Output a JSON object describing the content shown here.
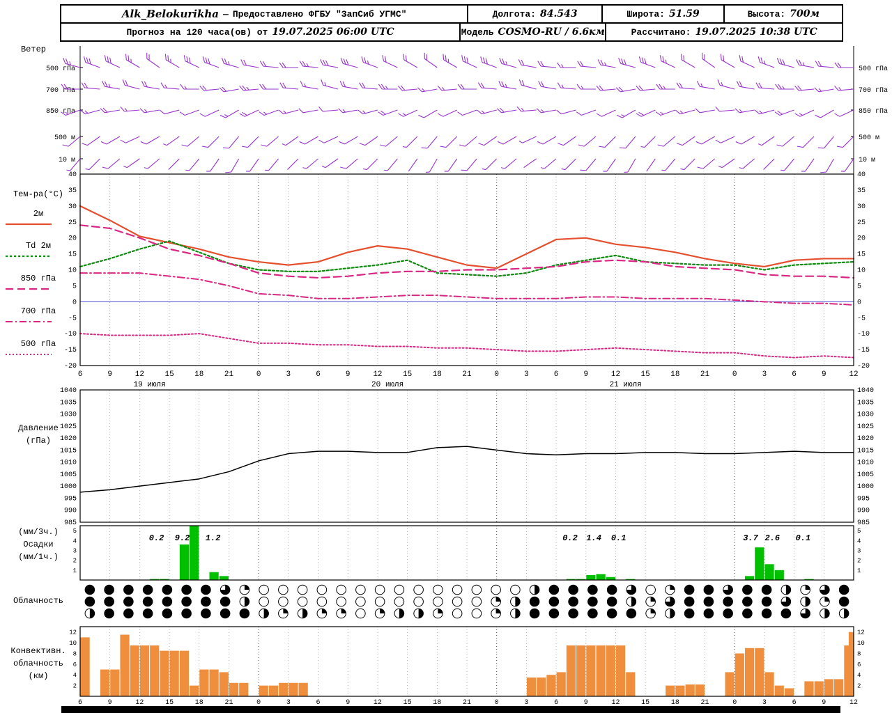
{
  "header": {
    "row1": {
      "station": "Alk_Belokurikha",
      "dash": "—",
      "provided": "Предоставлено ФГБУ \"ЗапСиб УГМС\"",
      "sep": "|",
      "lon_label": "Долгота:",
      "lon": "84.543",
      "lat_label": "Широта:",
      "lat": "51.59",
      "alt_label": "Высота:",
      "alt": "700м"
    },
    "row2": {
      "forecast_label": "Прогноз на 120 часа(ов) от",
      "forecast_time": "19.07.2025 06:00 UTC",
      "sep": "|",
      "model_label": "Модель",
      "model": "COSMO-RU / 6.6км",
      "calc_label": "Рассчитано:",
      "calc_time": "19.07.2025 10:38 UTC"
    }
  },
  "panels": {
    "wind_title": "Ветер",
    "temp_title": "Тем-ра(°C)",
    "pressure_title_1": "Давление",
    "pressure_title_2": "(гПа)",
    "precip_title_1": "(мм/3ч.)",
    "precip_title_2": "Осадки",
    "precip_title_3": "(мм/1ч.)",
    "cloud_title": "Облачность",
    "conv_title_1": "Конвективн.",
    "conv_title_2": "облачность",
    "conv_title_3": "(км)"
  },
  "axis": {
    "hour_start": 6,
    "hours_total": 78,
    "tick_step": 3,
    "tick_labels": [
      "6",
      "9",
      "12",
      "15",
      "18",
      "21",
      "0",
      "3",
      "6",
      "9",
      "12",
      "15",
      "18",
      "21",
      "0",
      "3",
      "6",
      "9",
      "12",
      "15",
      "18",
      "21",
      "0",
      "3",
      "6",
      "9",
      "12"
    ],
    "date_labels": [
      {
        "text": "19 июля",
        "h": 7
      },
      {
        "text": "20 июля",
        "h": 31
      },
      {
        "text": "21 июля",
        "h": 55
      }
    ]
  },
  "chart_data": [
    {
      "type": "wind-barbs",
      "name": "wind",
      "color": "#9933cc",
      "step_hours": 2,
      "levels": [
        {
          "label": "500 гПа",
          "dirs": [
            285,
            290,
            295,
            300,
            305,
            300,
            295,
            290,
            285,
            280,
            275,
            270,
            275,
            280,
            285,
            290,
            295,
            300,
            305,
            300,
            295,
            290,
            285,
            280,
            275,
            270,
            275,
            280,
            285,
            290,
            295,
            300,
            305,
            300,
            295,
            290,
            285,
            280,
            275,
            270
          ],
          "spds": [
            14,
            16,
            15,
            13,
            12,
            14,
            16,
            15,
            13,
            11,
            10,
            12,
            14,
            15,
            16,
            14,
            12,
            10,
            11,
            13,
            15,
            16,
            14,
            12,
            10,
            9,
            11,
            13,
            15,
            16,
            14,
            12,
            11,
            10,
            12,
            14,
            15,
            13,
            11,
            10
          ]
        },
        {
          "label": "700 гПа",
          "dirs": [
            270,
            275,
            280,
            285,
            280,
            275,
            270,
            265,
            260,
            265,
            270,
            275,
            280,
            285,
            280,
            275,
            270,
            265,
            260,
            265,
            270,
            275,
            280,
            285,
            280,
            275,
            270,
            265,
            260,
            265,
            270,
            275,
            280,
            285,
            280,
            275,
            270,
            265,
            260,
            265
          ],
          "spds": [
            10,
            12,
            13,
            12,
            10,
            9,
            8,
            10,
            12,
            13,
            12,
            10,
            8,
            9,
            11,
            12,
            13,
            11,
            9,
            8,
            10,
            12,
            13,
            12,
            10,
            9,
            8,
            10,
            11,
            12,
            13,
            11,
            9,
            8,
            10,
            12,
            13,
            11,
            9,
            8
          ]
        },
        {
          "label": "850 гПа",
          "dirs": [
            250,
            255,
            260,
            265,
            260,
            255,
            250,
            245,
            240,
            245,
            250,
            255,
            260,
            265,
            260,
            255,
            250,
            245,
            240,
            245,
            250,
            255,
            260,
            265,
            260,
            255,
            250,
            245,
            240,
            245,
            250,
            255,
            260,
            265,
            260,
            255,
            250,
            245,
            240,
            245
          ],
          "spds": [
            8,
            9,
            10,
            9,
            8,
            7,
            6,
            7,
            9,
            10,
            9,
            8,
            6,
            7,
            8,
            9,
            10,
            8,
            7,
            6,
            7,
            9,
            10,
            9,
            8,
            6,
            6,
            7,
            9,
            10,
            9,
            8,
            6,
            6,
            8,
            9,
            10,
            8,
            7,
            6
          ]
        },
        {
          "label": "500 м",
          "dirs": [
            230,
            235,
            240,
            245,
            240,
            235,
            230,
            225,
            220,
            225,
            230,
            235,
            240,
            245,
            240,
            235,
            230,
            225,
            220,
            225,
            230,
            235,
            240,
            245,
            240,
            235,
            230,
            225,
            220,
            225,
            230,
            235,
            240,
            245,
            240,
            235,
            230,
            225,
            220,
            225
          ],
          "spds": [
            5,
            6,
            7,
            6,
            5,
            4,
            5,
            6,
            7,
            6,
            5,
            4,
            5,
            6,
            7,
            6,
            5,
            4,
            5,
            6,
            7,
            6,
            5,
            4,
            5,
            6,
            7,
            6,
            5,
            4,
            5,
            6,
            7,
            6,
            5,
            4,
            5,
            6,
            7,
            6
          ]
        },
        {
          "label": "10 м",
          "dirs": [
            220,
            225,
            230,
            235,
            230,
            225,
            220,
            215,
            210,
            215,
            220,
            225,
            230,
            235,
            230,
            225,
            220,
            215,
            210,
            215,
            220,
            225,
            230,
            235,
            230,
            225,
            220,
            215,
            210,
            215,
            220,
            225,
            230,
            235,
            230,
            225,
            220,
            215,
            210,
            215
          ],
          "spds": [
            3,
            4,
            5,
            4,
            3,
            2,
            3,
            4,
            5,
            4,
            3,
            2,
            3,
            4,
            5,
            4,
            3,
            2,
            3,
            4,
            5,
            4,
            3,
            2,
            3,
            4,
            5,
            4,
            3,
            2,
            3,
            4,
            5,
            4,
            3,
            2,
            3,
            4,
            5,
            4
          ]
        }
      ]
    },
    {
      "type": "line",
      "name": "temperature",
      "ylim": [
        -20,
        40
      ],
      "ytick": 5,
      "x_step_hours": 3,
      "zero_line_color": "#3333cc",
      "series": [
        {
          "name": "2м",
          "color": "#e4502e",
          "dash": "",
          "width": 2.2,
          "values": [
            30,
            25.5,
            20.5,
            18.5,
            16.5,
            14,
            12.5,
            11.5,
            12.5,
            15.5,
            17.5,
            16.5,
            14,
            11.5,
            10.5,
            15,
            19.5,
            20,
            18,
            17,
            15.5,
            13.5,
            12,
            11,
            13,
            13.5,
            13.5
          ]
        },
        {
          "name": "Td 2м",
          "color": "#0f8a0f",
          "dash": "3 3",
          "width": 2.2,
          "values": [
            11,
            13.5,
            16.5,
            19,
            15.5,
            12,
            10,
            9.5,
            9.5,
            10.5,
            11.5,
            13,
            9,
            8.5,
            8,
            9,
            11.5,
            13,
            14.5,
            12.5,
            12,
            11.5,
            11.5,
            10,
            11.5,
            12,
            12.5
          ]
        },
        {
          "name": "850 гПа",
          "color": "#d92682",
          "dash": "11 6",
          "width": 2.2,
          "values": [
            24,
            23,
            20,
            16.5,
            14.5,
            12,
            9,
            8,
            7.5,
            8,
            9,
            9.5,
            9.5,
            10,
            10,
            10.5,
            11,
            12.5,
            13,
            12.5,
            11,
            10.5,
            10,
            8.5,
            8,
            8,
            7.5
          ]
        },
        {
          "name": "700 гПа",
          "color": "#d92682",
          "dash": "10 4 2 4",
          "width": 2,
          "values": [
            9,
            9,
            9,
            8,
            7,
            5,
            2.5,
            2,
            1,
            1,
            1.5,
            2,
            2,
            1.5,
            1,
            1,
            1,
            1.5,
            1.5,
            1,
            1,
            1,
            0.5,
            0,
            -0.5,
            -0.5,
            -1
          ]
        },
        {
          "name": "500 гПа",
          "color": "#d92682",
          "dash": "2 3",
          "width": 2,
          "values": [
            -10,
            -10.5,
            -10.5,
            -10.5,
            -10,
            -11.5,
            -13,
            -13,
            -13.5,
            -13.5,
            -14,
            -14,
            -14.5,
            -14.5,
            -15,
            -15.5,
            -15.5,
            -15,
            -14.5,
            -15,
            -15.5,
            -16,
            -16,
            -17,
            -17.5,
            -17,
            -17.5
          ]
        }
      ]
    },
    {
      "type": "line",
      "name": "pressure",
      "ylim": [
        985,
        1040
      ],
      "ytick": 5,
      "x_step_hours": 3,
      "series": [
        {
          "name": "Давление (гПа)",
          "color": "#000000",
          "dash": "",
          "width": 1.5,
          "values": [
            997.5,
            998.5,
            1000,
            1001.5,
            1003,
            1006,
            1010.5,
            1013.5,
            1014.5,
            1014.5,
            1014,
            1014,
            1016,
            1016.5,
            1015,
            1013.5,
            1013,
            1013.5,
            1013.5,
            1014,
            1014,
            1013.5,
            1013.5,
            1014,
            1014.5,
            1014,
            1014
          ]
        }
      ]
    },
    {
      "type": "bar",
      "name": "precipitation",
      "ylim": [
        0,
        5.5
      ],
      "yticks": [
        1,
        2,
        3,
        4,
        5
      ],
      "bar_color": "#00c000",
      "values_hourly": [
        0,
        0,
        0,
        0,
        0,
        0,
        0,
        0.1,
        0.1,
        0,
        3.6,
        5.6,
        0,
        0.8,
        0.4,
        0,
        0,
        0,
        0,
        0,
        0,
        0,
        0,
        0,
        0,
        0,
        0,
        0,
        0,
        0,
        0,
        0,
        0,
        0,
        0,
        0,
        0,
        0,
        0,
        0,
        0,
        0,
        0,
        0,
        0,
        0,
        0,
        0,
        0,
        0.1,
        0.1,
        0.5,
        0.6,
        0.3,
        0,
        0.1,
        0,
        0,
        0,
        0,
        0,
        0,
        0,
        0,
        0,
        0,
        0,
        0.4,
        3.3,
        1.6,
        1,
        0,
        0,
        0.1,
        0,
        0,
        0,
        0,
        0,
        0
      ],
      "sum_labels": [
        {
          "h": 7.7,
          "text": "0.2"
        },
        {
          "h": 10.3,
          "text": "9.2"
        },
        {
          "h": 13.4,
          "text": "1.2"
        },
        {
          "h": 49.4,
          "text": "0.2"
        },
        {
          "h": 51.8,
          "text": "1.4"
        },
        {
          "h": 54.3,
          "text": "0.1"
        },
        {
          "h": 67.6,
          "text": "3.7"
        },
        {
          "h": 69.8,
          "text": "2.6"
        },
        {
          "h": 72.9,
          "text": "0.1"
        }
      ]
    },
    {
      "type": "symbol-rows",
      "name": "cloudiness",
      "symbol": "cloud-cover-circle",
      "step_hours": 2,
      "oktas_max": 8,
      "rows": [
        [
          8,
          8,
          8,
          8,
          8,
          8,
          8,
          6,
          2,
          0,
          0,
          0,
          0,
          0,
          0,
          0,
          0,
          0,
          0,
          0,
          0,
          0,
          0,
          4,
          8,
          8,
          8,
          8,
          6,
          0,
          2,
          8,
          8,
          6,
          8,
          8,
          4,
          2,
          6,
          8
        ],
        [
          8,
          8,
          8,
          8,
          8,
          8,
          8,
          8,
          4,
          0,
          0,
          0,
          0,
          0,
          0,
          0,
          0,
          0,
          0,
          0,
          0,
          2,
          4,
          8,
          8,
          8,
          8,
          8,
          4,
          2,
          6,
          8,
          8,
          8,
          8,
          8,
          6,
          4,
          2,
          8
        ],
        [
          4,
          8,
          8,
          8,
          8,
          8,
          8,
          8,
          8,
          4,
          2,
          4,
          2,
          2,
          0,
          2,
          4,
          4,
          2,
          0,
          0,
          2,
          4,
          8,
          8,
          8,
          8,
          8,
          8,
          2,
          4,
          8,
          8,
          8,
          8,
          8,
          8,
          6,
          4,
          4
        ]
      ]
    },
    {
      "type": "bar",
      "name": "convective_cloud_km",
      "ylim": [
        0,
        13
      ],
      "yticks": [
        2,
        4,
        6,
        8,
        10,
        12
      ],
      "bar_color": "#ef8f3e",
      "values_hourly": [
        11,
        0,
        5,
        5,
        11.5,
        9.5,
        9.5,
        9.5,
        8.5,
        8.5,
        8.5,
        2,
        5,
        5,
        4.5,
        2.5,
        2.5,
        0,
        2,
        2,
        2.5,
        2.5,
        2.5,
        0,
        0,
        0,
        0,
        0,
        0,
        0,
        0,
        0,
        0,
        0,
        0,
        0,
        0,
        0,
        0,
        0,
        0,
        0,
        0,
        0,
        0,
        3.5,
        3.5,
        4,
        4.5,
        9.5,
        9.5,
        9.5,
        9.5,
        9.5,
        9.5,
        4.5,
        0,
        0,
        0,
        2,
        2,
        2.2,
        2.2,
        0,
        0,
        4.5,
        8,
        9,
        9,
        4.5,
        2,
        1.5,
        0,
        2.8,
        2.8,
        3.2,
        3.2,
        9.5,
        12
      ]
    }
  ]
}
